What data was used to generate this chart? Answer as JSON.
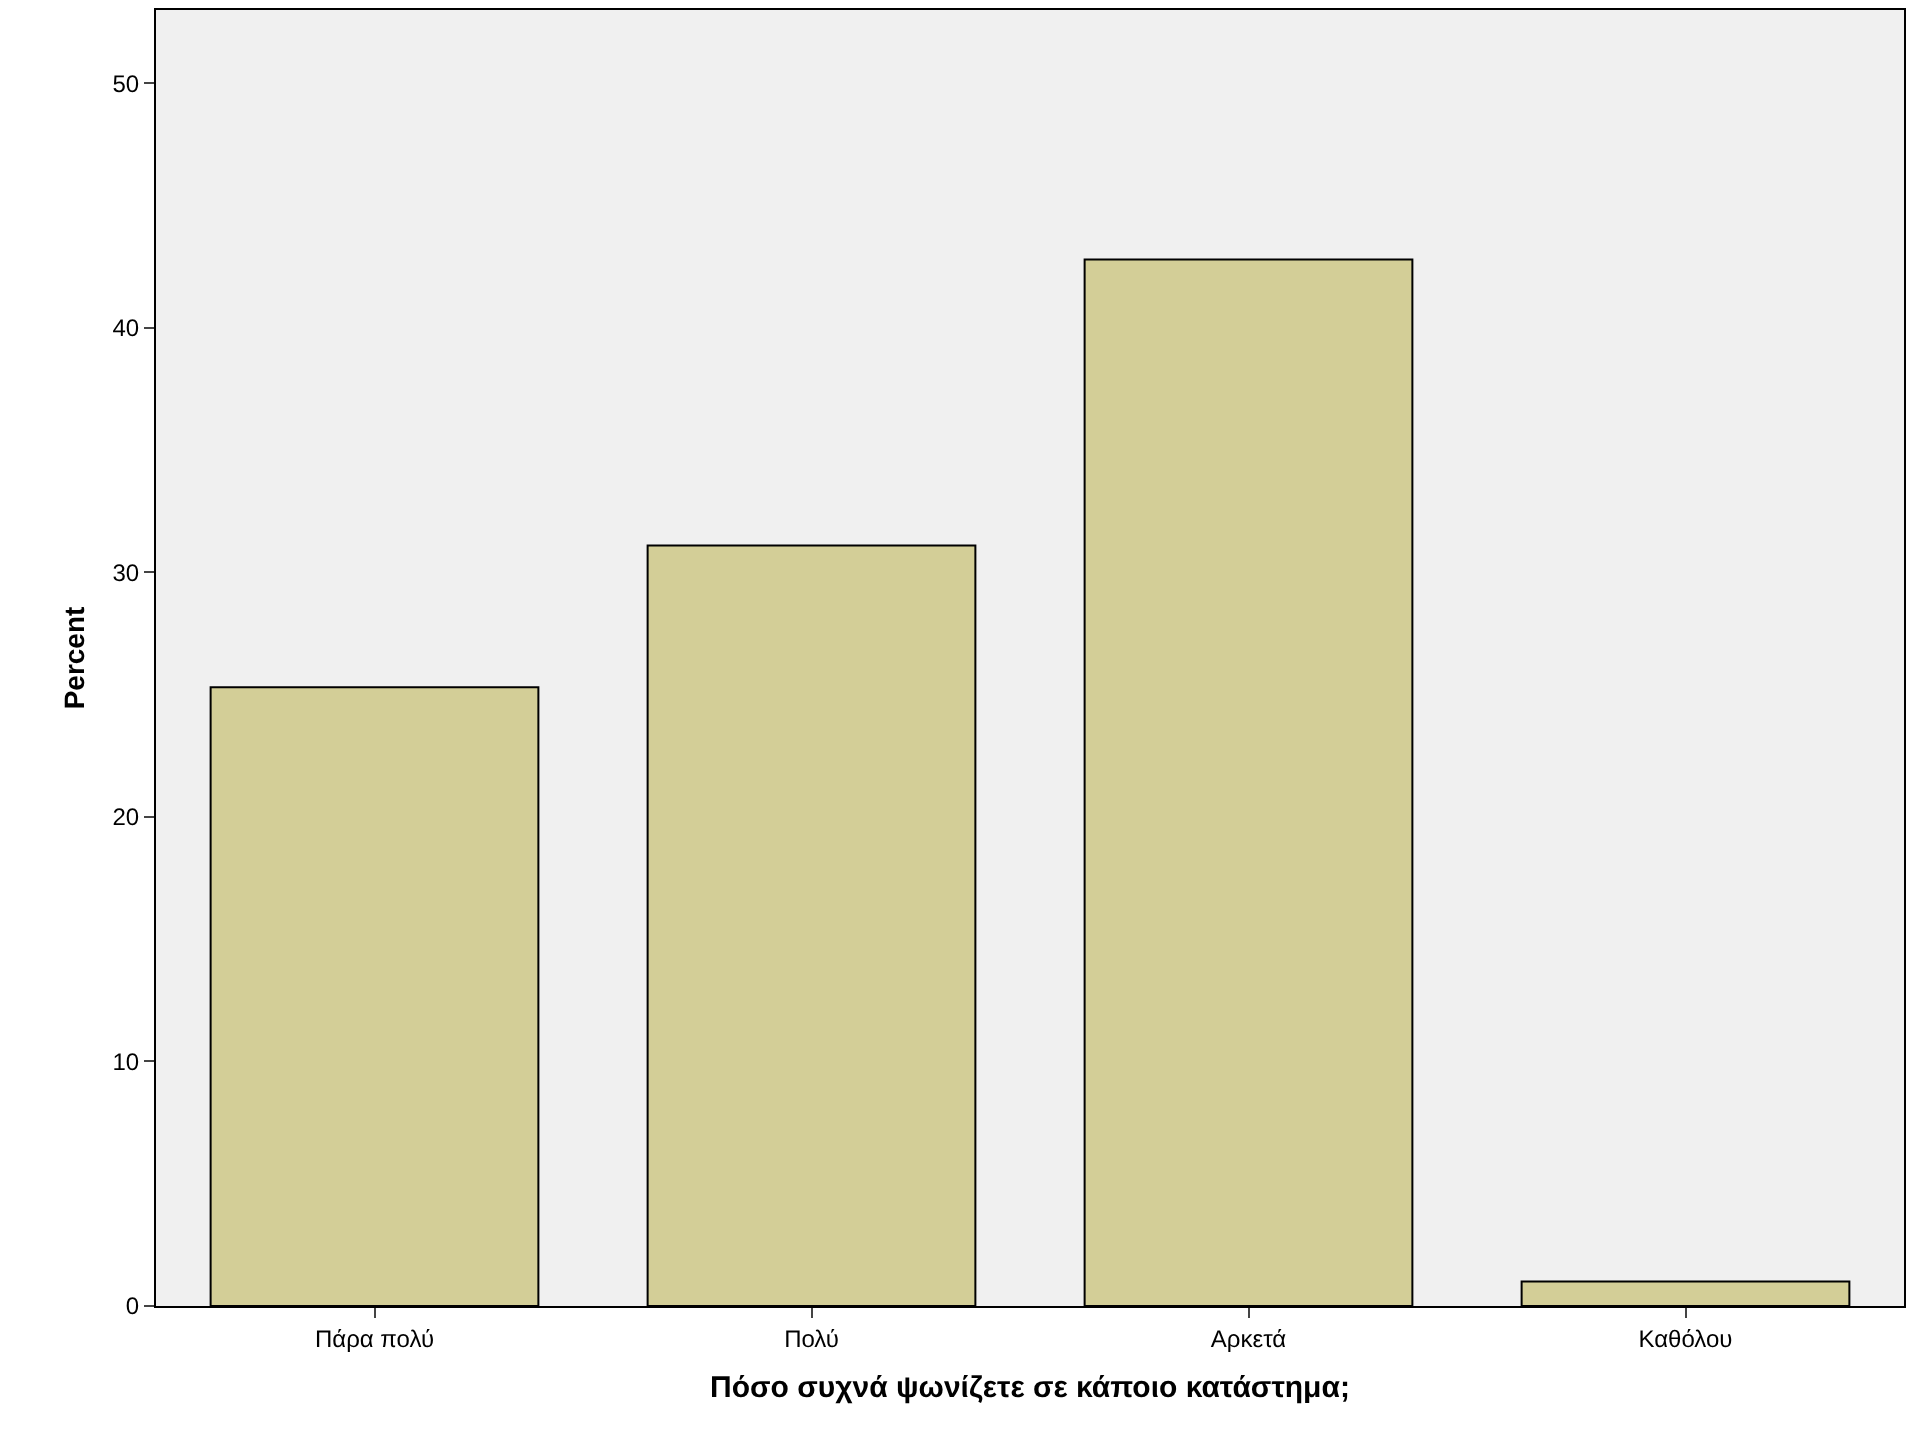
{
  "chart_data": {
    "type": "bar",
    "xlabel": "Πόσο συχνά ψωνίζετε σε κάποιο κατάστημα;",
    "ylabel": "Percent",
    "categories": [
      "Πάρα πολύ",
      "Πολύ",
      "Αρκετά",
      "Καθόλου"
    ],
    "values": [
      25.3,
      31.1,
      42.8,
      1.0
    ],
    "color": "#d3ce97",
    "ylim": [
      0,
      53
    ],
    "yticks": [
      0,
      10,
      20,
      30,
      40,
      50
    ],
    "grid": false
  }
}
